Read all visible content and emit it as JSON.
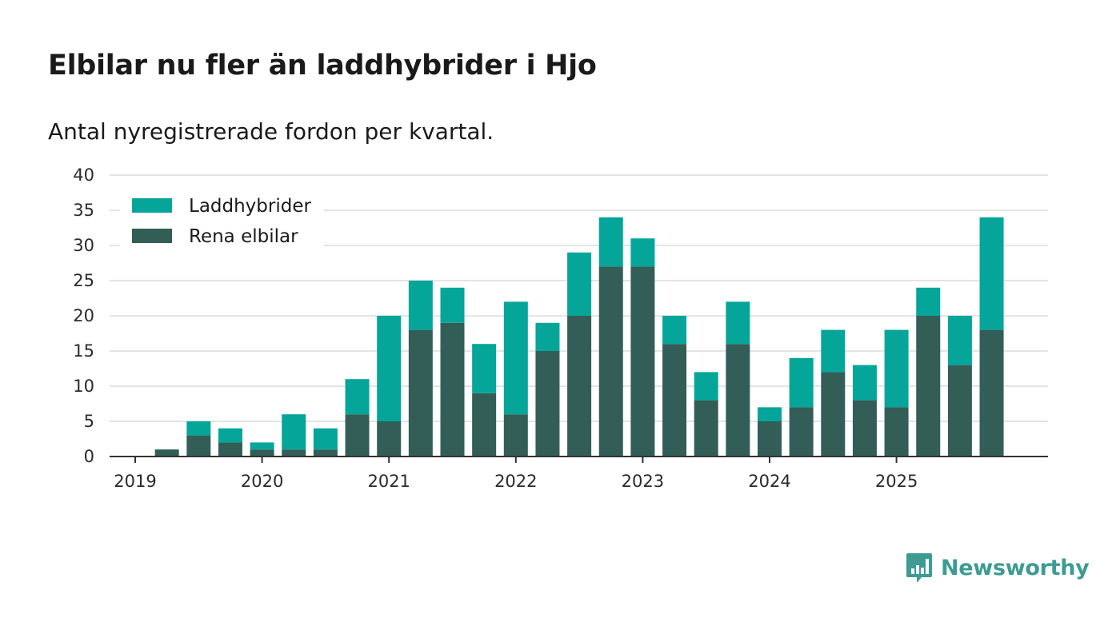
{
  "header": {
    "title": "Elbilar nu fler än laddhybrider i Hjo",
    "subtitle": "Antal nyregistrerade fordon per kvartal."
  },
  "brand": {
    "name": "Newsworthy",
    "icon": "bar-chart-speech-bubble-icon",
    "color": "#3e9b93"
  },
  "chart_data": {
    "type": "bar",
    "stacked": true,
    "title": "Elbilar nu fler än laddhybrider i Hjo",
    "subtitle": "Antal nyregistrerade fordon per kvartal.",
    "xlabel": "",
    "ylabel": "",
    "ylim": [
      0,
      40
    ],
    "yticks": [
      0,
      5,
      10,
      15,
      20,
      25,
      30,
      35,
      40
    ],
    "categories": [
      "2019 K1",
      "2019 K2",
      "2019 K3",
      "2019 K4",
      "2020 K1",
      "2020 K2",
      "2020 K3",
      "2020 K4",
      "2021 K1",
      "2021 K2",
      "2021 K3",
      "2021 K4",
      "2022 K1",
      "2022 K2",
      "2022 K3",
      "2022 K4",
      "2023 K1",
      "2023 K2",
      "2023 K3",
      "2023 K4",
      "2024 K1",
      "2024 K2",
      "2024 K3",
      "2024 K4",
      "2025 K1",
      "2025 K2",
      "2025 K3",
      "2025 K4"
    ],
    "xtick_labels": [
      "2019",
      "2020",
      "2021",
      "2022",
      "2023",
      "2024",
      "2025"
    ],
    "xtick_category_index": [
      0,
      4,
      8,
      12,
      16,
      20,
      24
    ],
    "series": [
      {
        "name": "Rena elbilar",
        "color": "#325e57",
        "values": [
          0,
          1,
          3,
          2,
          1,
          1,
          1,
          6,
          5,
          18,
          19,
          9,
          6,
          15,
          20,
          27,
          27,
          16,
          8,
          16,
          5,
          7,
          12,
          8,
          7,
          20,
          13,
          18
        ]
      },
      {
        "name": "Laddhybrider",
        "color": "#05a59a",
        "values": [
          0,
          0,
          2,
          2,
          1,
          5,
          3,
          5,
          15,
          7,
          5,
          7,
          16,
          4,
          9,
          7,
          4,
          4,
          4,
          6,
          2,
          7,
          6,
          5,
          11,
          4,
          7,
          16
        ]
      }
    ],
    "legend": {
      "position": "top-left",
      "order": [
        "Laddhybrider",
        "Rena elbilar"
      ]
    },
    "grid": true
  }
}
